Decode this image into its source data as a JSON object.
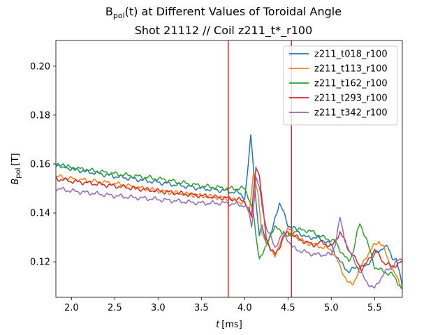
{
  "chart_data": {
    "type": "line",
    "title": {
      "prefix": "B",
      "subscript": "pol",
      "suffix": "(t) at Different Values of Toroidal Angle",
      "line2": "Shot 21112 // Coil z211_t*_r100"
    },
    "xlabel": {
      "symbol": "t",
      "unit": "[ms]"
    },
    "ylabel": {
      "symbol": "B",
      "subscript": "pol",
      "unit": "[T]"
    },
    "xlim": [
      1.82,
      5.82
    ],
    "ylim": [
      0.1055,
      0.2105
    ],
    "xticks": [
      2.0,
      2.5,
      3.0,
      3.5,
      4.0,
      4.5,
      5.0,
      5.5
    ],
    "xtick_labels": [
      "2.0",
      "2.5",
      "3.0",
      "3.5",
      "4.0",
      "4.5",
      "5.0",
      "5.5"
    ],
    "yticks": [
      0.12,
      0.14,
      0.16,
      0.18,
      0.2
    ],
    "ytick_labels": [
      "0.12",
      "0.14",
      "0.16",
      "0.18",
      "0.20"
    ],
    "vlines": [
      {
        "x": 3.81,
        "color": "#d62728"
      },
      {
        "x": 4.54,
        "color": "#d62728"
      }
    ],
    "grid": false,
    "legend_position": "top-right",
    "series": [
      {
        "name": "z211_t018_r100",
        "color": "#1f77b4",
        "points": [
          [
            1.82,
            0.16
          ],
          [
            2.0,
            0.158
          ],
          [
            2.5,
            0.155
          ],
          [
            3.0,
            0.1525
          ],
          [
            3.5,
            0.15
          ],
          [
            3.8,
            0.149
          ],
          [
            3.95,
            0.148
          ],
          [
            4.0,
            0.146
          ],
          [
            4.03,
            0.155
          ],
          [
            4.07,
            0.1715
          ],
          [
            4.1,
            0.16
          ],
          [
            4.13,
            0.145
          ],
          [
            4.17,
            0.13
          ],
          [
            4.2,
            0.135
          ],
          [
            4.25,
            0.128
          ],
          [
            4.3,
            0.13
          ],
          [
            4.35,
            0.138
          ],
          [
            4.4,
            0.144
          ],
          [
            4.45,
            0.14
          ],
          [
            4.5,
            0.135
          ],
          [
            4.55,
            0.134
          ],
          [
            4.6,
            0.133
          ],
          [
            4.7,
            0.13
          ],
          [
            4.8,
            0.13
          ],
          [
            4.9,
            0.129
          ],
          [
            5.0,
            0.127
          ],
          [
            5.05,
            0.123
          ],
          [
            5.1,
            0.12
          ],
          [
            5.2,
            0.116
          ],
          [
            5.3,
            0.118
          ],
          [
            5.4,
            0.118
          ],
          [
            5.5,
            0.123
          ],
          [
            5.6,
            0.126
          ],
          [
            5.65,
            0.126
          ],
          [
            5.7,
            0.122
          ],
          [
            5.75,
            0.121
          ],
          [
            5.82,
            0.11
          ]
        ]
      },
      {
        "name": "z211_t113_r100",
        "color": "#ff7f0e",
        "points": [
          [
            1.82,
            0.155
          ],
          [
            2.0,
            0.154
          ],
          [
            2.5,
            0.152
          ],
          [
            3.0,
            0.149
          ],
          [
            3.5,
            0.147
          ],
          [
            3.8,
            0.146
          ],
          [
            4.0,
            0.144
          ],
          [
            4.05,
            0.14
          ],
          [
            4.1,
            0.156
          ],
          [
            4.15,
            0.148
          ],
          [
            4.2,
            0.132
          ],
          [
            4.25,
            0.128
          ],
          [
            4.3,
            0.125
          ],
          [
            4.35,
            0.123
          ],
          [
            4.4,
            0.126
          ],
          [
            4.45,
            0.131
          ],
          [
            4.5,
            0.134
          ],
          [
            4.55,
            0.132
          ],
          [
            4.6,
            0.13
          ],
          [
            4.7,
            0.128
          ],
          [
            4.8,
            0.127
          ],
          [
            4.9,
            0.126
          ],
          [
            5.0,
            0.125
          ],
          [
            5.05,
            0.122
          ],
          [
            5.1,
            0.118
          ],
          [
            5.2,
            0.111
          ],
          [
            5.25,
            0.111
          ],
          [
            5.3,
            0.115
          ],
          [
            5.4,
            0.122
          ],
          [
            5.5,
            0.127
          ],
          [
            5.55,
            0.1285
          ],
          [
            5.6,
            0.126
          ],
          [
            5.7,
            0.117
          ],
          [
            5.75,
            0.114
          ],
          [
            5.82,
            0.109
          ]
        ]
      },
      {
        "name": "z211_t162_r100",
        "color": "#2ca02c",
        "points": [
          [
            1.82,
            0.1595
          ],
          [
            2.0,
            0.1585
          ],
          [
            2.5,
            0.156
          ],
          [
            3.0,
            0.154
          ],
          [
            3.5,
            0.151
          ],
          [
            3.8,
            0.15
          ],
          [
            3.9,
            0.15
          ],
          [
            4.0,
            0.15
          ],
          [
            4.05,
            0.146
          ],
          [
            4.1,
            0.14
          ],
          [
            4.13,
            0.13
          ],
          [
            4.17,
            0.122
          ],
          [
            4.2,
            0.123
          ],
          [
            4.25,
            0.126
          ],
          [
            4.3,
            0.132
          ],
          [
            4.35,
            0.134
          ],
          [
            4.4,
            0.133
          ],
          [
            4.45,
            0.132
          ],
          [
            4.5,
            0.13
          ],
          [
            4.55,
            0.132
          ],
          [
            4.6,
            0.133
          ],
          [
            4.7,
            0.133
          ],
          [
            4.8,
            0.132
          ],
          [
            4.9,
            0.13
          ],
          [
            5.0,
            0.129
          ],
          [
            5.05,
            0.128
          ],
          [
            5.1,
            0.125
          ],
          [
            5.2,
            0.12
          ],
          [
            5.25,
            0.124
          ],
          [
            5.3,
            0.132
          ],
          [
            5.33,
            0.1355
          ],
          [
            5.4,
            0.13
          ],
          [
            5.5,
            0.118
          ],
          [
            5.6,
            0.116
          ],
          [
            5.7,
            0.115
          ],
          [
            5.82,
            0.109
          ]
        ]
      },
      {
        "name": "z211_t293_r100",
        "color": "#d62728",
        "points": [
          [
            1.82,
            0.154
          ],
          [
            2.0,
            0.153
          ],
          [
            2.5,
            0.151
          ],
          [
            3.0,
            0.149
          ],
          [
            3.5,
            0.147
          ],
          [
            3.8,
            0.146
          ],
          [
            4.0,
            0.145
          ],
          [
            4.05,
            0.141
          ],
          [
            4.08,
            0.138
          ],
          [
            4.1,
            0.148
          ],
          [
            4.13,
            0.1595
          ],
          [
            4.17,
            0.155
          ],
          [
            4.2,
            0.145
          ],
          [
            4.25,
            0.13
          ],
          [
            4.3,
            0.125
          ],
          [
            4.35,
            0.123
          ],
          [
            4.4,
            0.126
          ],
          [
            4.45,
            0.13
          ],
          [
            4.5,
            0.132
          ],
          [
            4.55,
            0.131
          ],
          [
            4.6,
            0.13
          ],
          [
            4.7,
            0.128
          ],
          [
            4.8,
            0.127
          ],
          [
            4.9,
            0.128
          ],
          [
            5.0,
            0.126
          ],
          [
            5.1,
            0.132
          ],
          [
            5.15,
            0.129
          ],
          [
            5.2,
            0.125
          ],
          [
            5.3,
            0.12
          ],
          [
            5.35,
            0.117
          ],
          [
            5.4,
            0.119
          ],
          [
            5.5,
            0.125
          ],
          [
            5.6,
            0.12
          ],
          [
            5.7,
            0.118
          ],
          [
            5.82,
            0.12
          ]
        ]
      },
      {
        "name": "z211_t342_r100",
        "color": "#9467bd",
        "points": [
          [
            1.82,
            0.15
          ],
          [
            2.0,
            0.149
          ],
          [
            2.5,
            0.147
          ],
          [
            3.0,
            0.1455
          ],
          [
            3.5,
            0.144
          ],
          [
            3.8,
            0.144
          ],
          [
            4.0,
            0.143
          ],
          [
            4.05,
            0.14
          ],
          [
            4.08,
            0.134
          ],
          [
            4.1,
            0.142
          ],
          [
            4.13,
            0.1545
          ],
          [
            4.17,
            0.15
          ],
          [
            4.2,
            0.143
          ],
          [
            4.25,
            0.134
          ],
          [
            4.3,
            0.13
          ],
          [
            4.35,
            0.126
          ],
          [
            4.4,
            0.129
          ],
          [
            4.45,
            0.132
          ],
          [
            4.5,
            0.129
          ],
          [
            4.55,
            0.126
          ],
          [
            4.6,
            0.125
          ],
          [
            4.7,
            0.124
          ],
          [
            4.8,
            0.123
          ],
          [
            4.9,
            0.123
          ],
          [
            5.0,
            0.123
          ],
          [
            5.05,
            0.128
          ],
          [
            5.1,
            0.138
          ],
          [
            5.15,
            0.13
          ],
          [
            5.2,
            0.125
          ],
          [
            5.3,
            0.118
          ],
          [
            5.4,
            0.112
          ],
          [
            5.5,
            0.109
          ],
          [
            5.6,
            0.115
          ],
          [
            5.7,
            0.118
          ],
          [
            5.75,
            0.12
          ],
          [
            5.82,
            0.121
          ]
        ]
      }
    ]
  }
}
